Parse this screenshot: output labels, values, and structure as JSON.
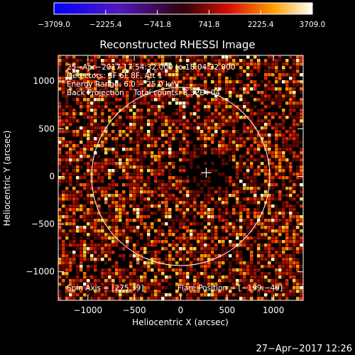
{
  "chart_data": {
    "type": "heatmap",
    "title": "Reconstructed RHESSI Image",
    "xlabel": "Heliocentric X (arcsec)",
    "ylabel": "Heliocentric Y (arcsec)",
    "xlim": [
      -1320,
      1320
    ],
    "ylim": [
      -1300,
      1270
    ],
    "x_ticks": [
      -1000,
      -500,
      0,
      500,
      1000
    ],
    "y_ticks": [
      -1000,
      -500,
      0,
      500,
      1000
    ],
    "x_tick_labels": [
      "−1000",
      "−500",
      "0",
      "500",
      "1000"
    ],
    "y_tick_labels": [
      "−1000",
      "−500",
      "0",
      "500",
      "1000"
    ],
    "colorbar": {
      "min": -3709.0,
      "max": 3709.0,
      "ticks": [
        -3709.0,
        -2225.4,
        -741.8,
        741.8,
        2225.4,
        3709.0
      ],
      "tick_labels": [
        "−3709.0",
        "−2225.4",
        "−741.8",
        "741.8",
        "2225.4",
        "3709.0"
      ],
      "colormap": "blue-purple-red-yellow-white"
    },
    "annotations": [
      "25−Apr−2017 17:54:32.000 to 18:04:32.000",
      "Detectors: 3F 6F 8F, Att 1",
      "Energy Range: 6.0 − 25.0 keV",
      "Back Projection    Total counts: 8.32E+04"
    ],
    "spin_axis_label": "Spin Axis = [275,39]",
    "flare_position_label": "Flare Position = [−199,−49]",
    "solar_disk": {
      "center": [
        0,
        0
      ],
      "radius_arcsec": 960
    },
    "cross_position": [
      275,
      39
    ],
    "quiet_region": {
      "center": [
        275,
        39
      ],
      "radius_arcsec": 210
    },
    "pattern": "noise",
    "seed": 1234
  },
  "footer": {
    "timestamp": "27−Apr−2017 12:26"
  },
  "colors": {
    "background": "#000000",
    "foreground": "#ffffff"
  }
}
